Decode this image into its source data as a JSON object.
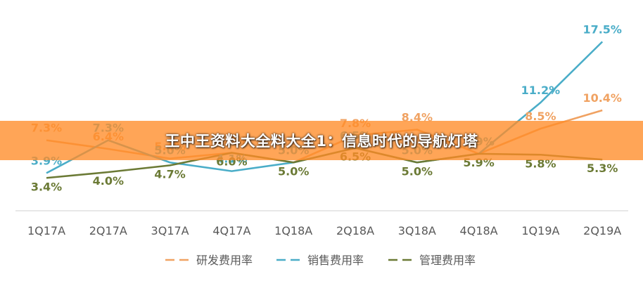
{
  "chart_data": {
    "type": "line",
    "categories": [
      "1Q17A",
      "2Q17A",
      "3Q17A",
      "4Q17A",
      "1Q18A",
      "2Q18A",
      "3Q18A",
      "4Q18A",
      "1Q19A",
      "2Q19A"
    ],
    "ylim": [
      0,
      20
    ],
    "grid": false,
    "legend_position": "bottom",
    "series": [
      {
        "name": "研发费用率",
        "color": "#F0A262",
        "values": [
          7.3,
          6.4,
          5.4,
          6.0,
          5.0,
          7.8,
          8.4,
          5.9,
          8.5,
          10.4
        ],
        "labels": [
          "7.3%",
          "6.4%",
          "5.4%",
          "6.0%",
          "5.0%",
          "7.8%",
          "8.4%",
          "5.9%",
          "8.5%",
          "10.4%"
        ]
      },
      {
        "name": "销售费用率",
        "color": "#4AADC8",
        "values": [
          3.9,
          7.3,
          5.0,
          4.1,
          5.0,
          6.5,
          5.0,
          5.9,
          11.2,
          17.5
        ],
        "labels": [
          "3.9%",
          "7.3%",
          "5.0%",
          "4.1%",
          "5.0%",
          "6.5%",
          "5.0%",
          "5.9%",
          "11.2%",
          "17.5%"
        ]
      },
      {
        "name": "管理费用率",
        "color": "#6B7A35",
        "values": [
          3.4,
          4.0,
          4.7,
          6.0,
          5.0,
          6.5,
          5.0,
          5.9,
          5.8,
          5.3
        ],
        "labels": [
          "3.4%",
          "4.0%",
          "4.7%",
          "6.0%",
          "5.0%",
          "6.5%",
          "5.0%",
          "5.9%",
          "5.8%",
          "5.3%"
        ]
      }
    ]
  },
  "overlay": {
    "banner_text": "王中王资料大全料大全1：信息时代的导航灯塔"
  }
}
